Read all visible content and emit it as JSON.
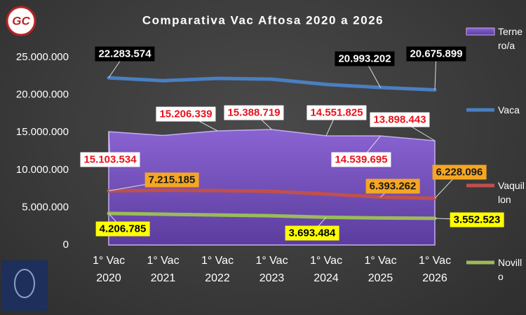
{
  "chart_data": {
    "type": "line",
    "title": "Comparativa Vac Aftosa 2020 a 2026",
    "logo_text": "GC",
    "categories": [
      "1° Vac 2020",
      "1° Vac 2021",
      "1° Vac 2022",
      "1° Vac 2023",
      "1° Vac 2024",
      "1° Vac 2025",
      "1° Vac 2026"
    ],
    "ylim": [
      0,
      25000000
    ],
    "yticks": [
      0,
      {
        "value": 5000000,
        "label": "5.000.000"
      },
      {
        "value": 10000000,
        "label": "10.000.000"
      },
      {
        "value": 15000000,
        "label": "15.000.000"
      },
      {
        "value": 20000000,
        "label": "20.000.000"
      },
      {
        "value": 25000000,
        "label": "25.000.000"
      }
    ],
    "grid": false,
    "legend": "right",
    "series": [
      {
        "name": "Ternero/a",
        "kind": "area",
        "color": "#7e57c6",
        "label_color": "#ffffff",
        "label_text_color": "#e8121b",
        "values": [
          15103534,
          14600000,
          15206339,
          15388719,
          14551825,
          14539695,
          13898443
        ],
        "value_labels": [
          "15.103.534",
          null,
          "15.206.339",
          "15.388.719",
          "14.551.825",
          "14.539.695",
          "13.898.443"
        ]
      },
      {
        "name": "Vaca",
        "kind": "line",
        "color": "#4a7fc1",
        "label_color": "#000000",
        "label_text_color": "#ffffff",
        "values": [
          22283574,
          21900000,
          22200000,
          22100000,
          21400000,
          20993202,
          20675899
        ],
        "value_labels": [
          "22.283.574",
          null,
          null,
          null,
          null,
          "20.993.202",
          "20.675.899"
        ]
      },
      {
        "name": "Vaquillon",
        "kind": "line",
        "color": "#c0504d",
        "label_color": "#f5a623",
        "label_text_color": "#1a1a1a",
        "values": [
          7215185,
          7300000,
          7250000,
          7150000,
          6800000,
          6393262,
          6228096
        ],
        "value_labels": [
          "7.215.185",
          null,
          null,
          null,
          null,
          "6.393.262",
          "6.228.096"
        ]
      },
      {
        "name": "Novillo",
        "kind": "line",
        "color": "#9bbb59",
        "label_color": "#ffff00",
        "label_text_color": "#000000",
        "values": [
          4206785,
          4100000,
          4000000,
          3900000,
          3693484,
          3600000,
          3552523
        ],
        "value_labels": [
          "4.206.785",
          null,
          null,
          null,
          "3.693.484",
          null,
          "3.552.523"
        ]
      }
    ]
  }
}
